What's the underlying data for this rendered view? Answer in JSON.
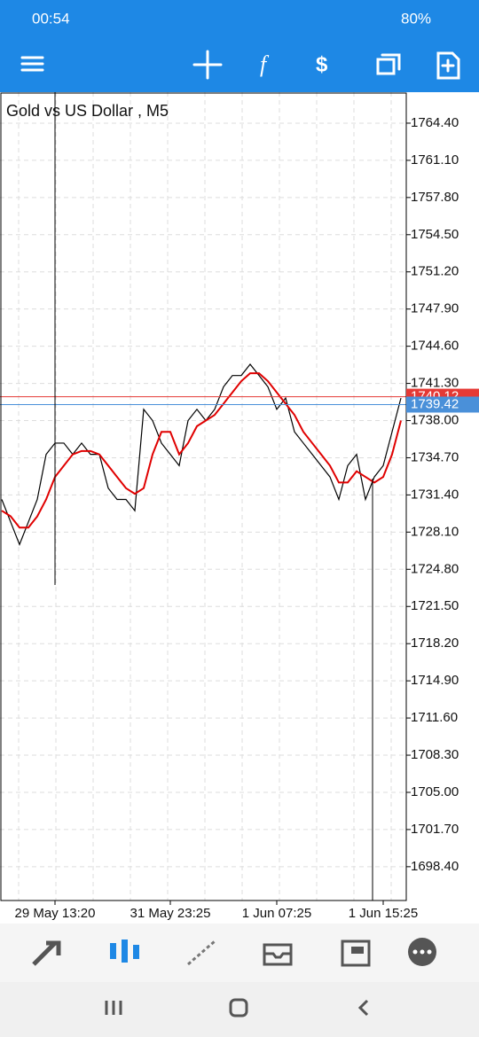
{
  "status_bar": {
    "time": "00:54",
    "battery": "80%"
  },
  "chart_data": {
    "type": "line",
    "title": "Gold vs US Dollar , M5",
    "categories": [
      null,
      null,
      null,
      null,
      null,
      null,
      "29 May 13:20",
      null,
      null,
      null,
      null,
      null,
      null,
      null,
      null,
      null,
      null,
      null,
      null,
      "31 May 23:25",
      null,
      null,
      null,
      null,
      null,
      null,
      null,
      null,
      null,
      null,
      null,
      "1 Jun 07:25",
      null,
      null,
      null,
      null,
      null,
      null,
      null,
      null,
      null,
      null,
      null,
      "1 Jun 15:25",
      null,
      null
    ],
    "series": [
      {
        "color": "#000000",
        "values": [
          1731,
          1729,
          1727,
          1729,
          1731,
          1735,
          1736,
          1736,
          1735,
          1736,
          1735,
          1735,
          1732,
          1731,
          1731,
          1730,
          1739,
          1738,
          1736,
          1735,
          1734,
          1738,
          1739,
          1738,
          1739,
          1741,
          1742,
          1742,
          1743,
          1742,
          1741,
          1739,
          1740,
          1737,
          1736,
          1735,
          1734,
          1733,
          1731,
          1734,
          1735,
          1731,
          1733,
          1734,
          1737,
          1740
        ]
      },
      {
        "color": "#e00000",
        "values": [
          1730,
          1729.5,
          1728.5,
          1728.5,
          1729.5,
          1731,
          1733,
          1734,
          1735,
          1735.3,
          1735.3,
          1735,
          1734,
          1733,
          1732,
          1731.5,
          1732,
          1735,
          1737,
          1737,
          1735,
          1736,
          1737.5,
          1738,
          1738.5,
          1739.5,
          1740.5,
          1741.5,
          1742.2,
          1742.2,
          1741.5,
          1740.5,
          1739.5,
          1738.5,
          1737,
          1736,
          1735,
          1734,
          1732.5,
          1732.5,
          1733.5,
          1733,
          1732.5,
          1733,
          1735,
          1738
        ]
      }
    ],
    "bid": {
      "value": 1740.12,
      "color": "#e53935"
    },
    "ask": {
      "value": 1739.42,
      "color": "#4a90d9"
    },
    "ylim": [
      1695.4,
      1767.15
    ],
    "yticks": [
      {
        "value": 1764.4,
        "label": "1764.40"
      },
      {
        "value": 1761.1,
        "label": "1761.10"
      },
      {
        "value": 1757.8,
        "label": "1757.80"
      },
      {
        "value": 1754.5,
        "label": "1754.50"
      },
      {
        "value": 1751.2,
        "label": "1751.20"
      },
      {
        "value": 1747.9,
        "label": "1747.90"
      },
      {
        "value": 1744.6,
        "label": "1744.60"
      },
      {
        "value": 1741.3,
        "label": "1741.30"
      },
      {
        "value": 1738,
        "label": "1738.00"
      },
      {
        "value": 1734.7,
        "label": "1734.70"
      },
      {
        "value": 1731.4,
        "label": "1731.40"
      },
      {
        "value": 1728.1,
        "label": "1728.10"
      },
      {
        "value": 1724.8,
        "label": "1724.80"
      },
      {
        "value": 1721.5,
        "label": "1721.50"
      },
      {
        "value": 1718.2,
        "label": "1718.20"
      },
      {
        "value": 1714.9,
        "label": "1714.90"
      },
      {
        "value": 1711.6,
        "label": "1711.60"
      },
      {
        "value": 1708.3,
        "label": "1708.30"
      },
      {
        "value": 1705,
        "label": "1705.00"
      },
      {
        "value": 1701.7,
        "label": "1701.70"
      },
      {
        "value": 1698.4,
        "label": "1698.40"
      }
    ],
    "grid": true
  }
}
